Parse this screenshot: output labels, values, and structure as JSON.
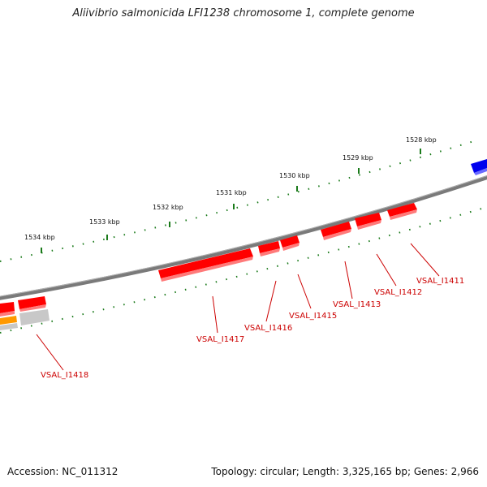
{
  "header": {
    "title": "Aliivibrio salmonicida LFI1238 chromosome 1, complete genome"
  },
  "footer": {
    "accession": "Accession: NC_011312",
    "topology": "Topology: circular; Length: 3,325,165 bp; Genes: 2,966"
  },
  "scale_labels": [
    "1534 kbp",
    "1533 kbp",
    "1532 kbp",
    "1531 kbp",
    "1530 kbp",
    "1529 kbp",
    "1528 kbp"
  ],
  "genes": [
    {
      "label": "VSAL_I1411",
      "color": "#ff0000"
    },
    {
      "label": "VSAL_I1412",
      "color": "#ff0000"
    },
    {
      "label": "VSAL_I1413",
      "color": "#ff0000"
    },
    {
      "label": "VSAL_I1415",
      "color": "#ff0000"
    },
    {
      "label": "VSAL_I1416",
      "color": "#ff0000"
    },
    {
      "label": "VSAL_I1417",
      "color": "#ff0000"
    },
    {
      "label": "VSAL_I1418",
      "color": "#ff0000"
    }
  ],
  "colors": {
    "backbone": "#808080",
    "tick": "#1a7a1a",
    "gene_forward": "#ff0000",
    "gene_other": "#0000ee",
    "gene_orange": "#ff9900",
    "gene_grey": "#c0c0c0",
    "label": "#cc0000"
  }
}
